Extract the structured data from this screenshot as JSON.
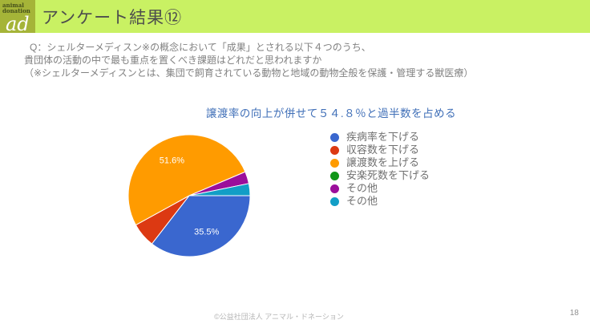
{
  "header": {
    "title": "アンケート結果⑫",
    "logo": {
      "top": "animal\ndonation",
      "mark": "ad"
    }
  },
  "question": {
    "lines": [
      "Q：シェルターメディスン※の概念において「成果」とされる以下４つのうち、",
      "貴団体の活動の中で最も重点を置くべき課題はどれだと思われますか",
      "（※シェルターメディスンとは、集団で飼育されている動物と地域の動物全般を保護・管理する獣医療）"
    ]
  },
  "chart_data": {
    "type": "pie",
    "title": "譲渡率の向上が併せて５４.８％と過半数を占める",
    "start_angle_deg": 90,
    "direction": "clockwise",
    "legend_position": "right",
    "label_format": "percent",
    "slices": [
      {
        "label": "疾病率を下げる",
        "value": 35.5,
        "color": "#3a67cf",
        "label_shown": true
      },
      {
        "label": "収容数を下げる",
        "value": 6.5,
        "color": "#dc3912",
        "label_shown": false
      },
      {
        "label": "譲渡数を上げる",
        "value": 51.6,
        "color": "#ff9b00",
        "label_shown": true
      },
      {
        "label": "安楽死数を下げる",
        "value": 0,
        "color": "#109618",
        "label_shown": false
      },
      {
        "label": "その他",
        "value": 3.2,
        "color": "#9b0f9b",
        "label_shown": false
      },
      {
        "label": "その他",
        "value": 3.2,
        "color": "#129ec6",
        "label_shown": false
      }
    ]
  },
  "footer": {
    "copyright": "©公益社団法人 アニマル・ドネーション",
    "page_number": "18"
  }
}
